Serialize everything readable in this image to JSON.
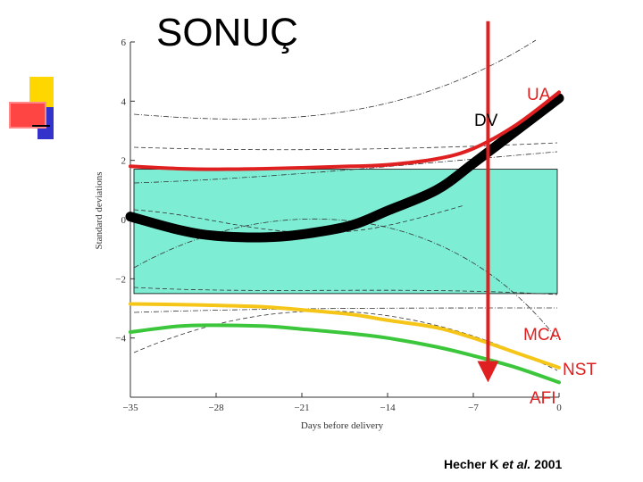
{
  "slide": {
    "title": "SONUÇ",
    "citation_author": "Hecher K ",
    "citation_etal": "et al.",
    "citation_year": " 2001"
  },
  "colors": {
    "band": "#7DEED4",
    "ua": "#000000",
    "dv": "#E02020",
    "mca": "#F5C518",
    "nst": "#3CC63C",
    "arrow": "#E02020",
    "deco_yellow": "#FFD700",
    "deco_blue": "#3333CC",
    "deco_red": "#FF4444"
  },
  "chart_data": {
    "type": "line",
    "xlabel": "Days before delivery",
    "ylabel": "Standard deviations",
    "xlim": [
      -35,
      0
    ],
    "ylim": [
      -6,
      6
    ],
    "xticks": [
      -35,
      -28,
      -21,
      -14,
      -7,
      0
    ],
    "xtick_labels": [
      "−35",
      "−28",
      "−21",
      "−14",
      "−7",
      "0"
    ],
    "yticks": [
      6,
      4,
      2,
      0,
      -2,
      -4
    ],
    "ytick_labels": [
      "6",
      "4",
      "2",
      "0",
      "−2",
      "−4"
    ],
    "normal_band": [
      -2.5,
      1.7
    ],
    "series": [
      {
        "name": "UA",
        "x": [
          -35,
          -31,
          -28,
          -24,
          -21,
          -17,
          -14,
          -10,
          -7,
          -3.5,
          0
        ],
        "y": [
          0.1,
          -0.35,
          -0.55,
          -0.6,
          -0.5,
          -0.2,
          0.3,
          1.0,
          1.9,
          3.0,
          4.1
        ]
      },
      {
        "name": "DV",
        "x": [
          -35,
          -31,
          -28,
          -24,
          -21,
          -17,
          -14,
          -10,
          -7,
          -3.5,
          0
        ],
        "y": [
          1.8,
          1.72,
          1.7,
          1.72,
          1.75,
          1.8,
          1.85,
          2.05,
          2.4,
          3.2,
          4.3
        ]
      },
      {
        "name": "MCA",
        "x": [
          -35,
          -31,
          -28,
          -24,
          -21,
          -17,
          -14,
          -10,
          -7,
          -3.5,
          0
        ],
        "y": [
          -2.85,
          -2.87,
          -2.9,
          -2.95,
          -3.05,
          -3.2,
          -3.4,
          -3.65,
          -4.0,
          -4.5,
          -5.0
        ]
      },
      {
        "name": "NST",
        "x": [
          -35,
          -31,
          -28,
          -24,
          -21,
          -17,
          -14,
          -10,
          -7,
          -3.5,
          0
        ],
        "y": [
          -3.8,
          -3.6,
          -3.57,
          -3.6,
          -3.7,
          -3.85,
          -4.0,
          -4.3,
          -4.6,
          -5.0,
          -5.5
        ]
      }
    ],
    "annotations": [
      {
        "text": "UA",
        "series": "UA"
      },
      {
        "text": "DV",
        "series": "DV"
      },
      {
        "text": "MCA",
        "series": "MCA"
      },
      {
        "text": "NST",
        "series": "NST"
      },
      {
        "text": "AFI",
        "series": "arrow"
      }
    ],
    "arrow_x": -5.8,
    "arrow_y_from": 6.7,
    "arrow_y_to": -5.5
  }
}
